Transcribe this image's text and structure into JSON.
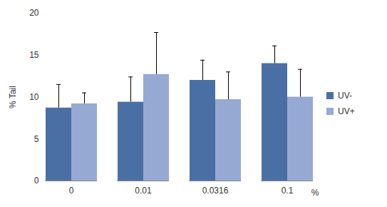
{
  "chart_data": {
    "type": "bar",
    "categories": [
      "0",
      "0.01",
      "0.0316",
      "0.1"
    ],
    "x_label": "%",
    "y_label": "% Tail",
    "series": [
      {
        "name": "UV-",
        "color": "#4a6fa5",
        "values": [
          8.7,
          9.4,
          12.0,
          14.0
        ],
        "errors": [
          2.8,
          3.0,
          2.4,
          2.1
        ]
      },
      {
        "name": "UV+",
        "color": "#95a9d3",
        "values": [
          9.2,
          12.7,
          9.7,
          10.0
        ],
        "errors": [
          1.3,
          5.0,
          3.3,
          3.3
        ]
      }
    ],
    "ylim": [
      0,
      20
    ],
    "yticks": [
      0,
      5,
      10,
      15,
      20
    ],
    "grid": false,
    "legend": "right"
  }
}
